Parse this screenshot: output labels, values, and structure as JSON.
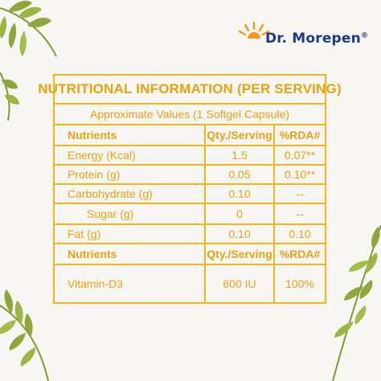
{
  "brand": {
    "name": "Dr. Morepen",
    "reg_mark": "®"
  },
  "table": {
    "title": "NUTRITIONAL INFORMATION (PER SERVING)",
    "subtitle": "Approximate Values (1 Softgel Capsule)",
    "header": {
      "nutrient": "Nutrients",
      "qty": "Qty./Serving",
      "rda": "%RDA#"
    },
    "rows": [
      {
        "nutrient": "Energy (Kcal)",
        "qty": "1.5",
        "rda": "0.07**"
      },
      {
        "nutrient": "Protein (g)",
        "qty": "0.05",
        "rda": "0.10**"
      },
      {
        "nutrient": "Carbohydrate (g)",
        "qty": "0.10",
        "rda": "--"
      },
      {
        "nutrient": "Sugar (g)",
        "qty": "0",
        "rda": "--"
      },
      {
        "nutrient": "Fat (g)",
        "qty": "0.10",
        "rda": "0.10"
      }
    ],
    "header2": {
      "nutrient": "Nutrients",
      "qty": "Qty./Serving",
      "rda": "%RDA#"
    },
    "vitamin_row": {
      "nutrient": "Vitamin-D3",
      "qty": "600 IU",
      "rda": "100%"
    }
  },
  "colors": {
    "accent": "#f2b51a",
    "text": "#e8a20e",
    "brand": "#1d3a8a",
    "leaf": "#8fa63a"
  }
}
